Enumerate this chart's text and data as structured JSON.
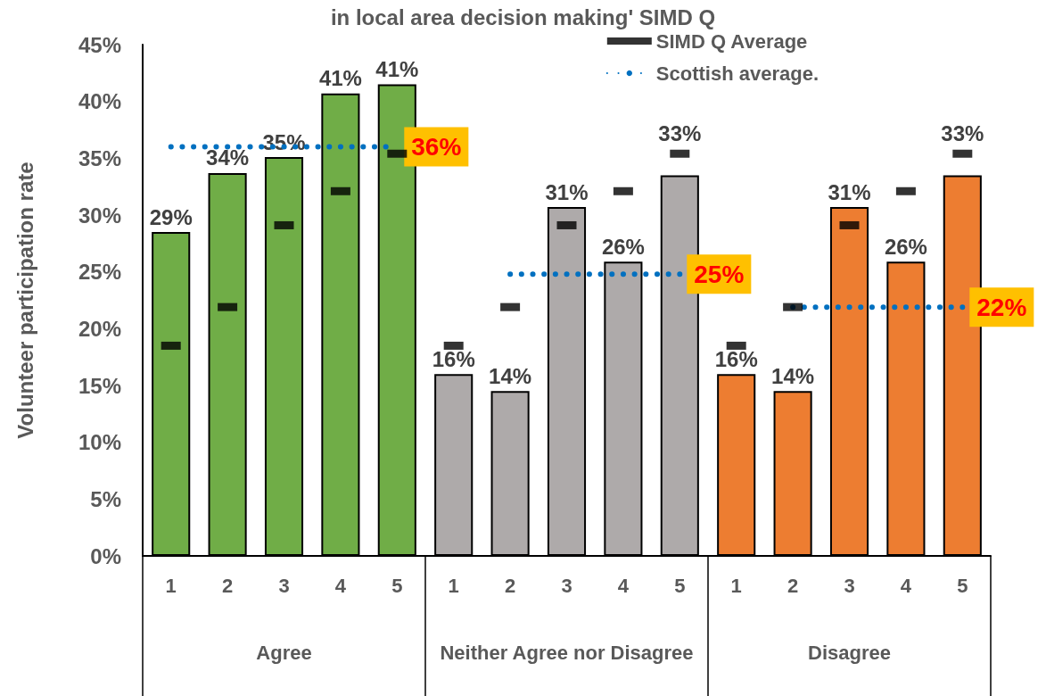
{
  "chart_data": {
    "type": "bar",
    "title": "in local area decision making' SIMD Q",
    "ylabel": "Volunteer participation rate",
    "categories": [
      "1",
      "2",
      "3",
      "4",
      "5",
      "1",
      "2",
      "3",
      "4",
      "5",
      "1",
      "2",
      "3",
      "4",
      "5"
    ],
    "annotations": [
      "Agree",
      "Neither Agree nor Disagree",
      "Disagree"
    ],
    "series": [
      {
        "colors": [
          "#70ad47",
          "#70ad47",
          "#70ad47",
          "#70ad47",
          "#70ad47",
          "#aeaaaa",
          "#aeaaaa",
          "#aeaaaa",
          "#aeaaaa",
          "#aeaaaa",
          "#ed7d31",
          "#ed7d31",
          "#ed7d31",
          "#ed7d31",
          "#ed7d31"
        ],
        "values": [
          28.5,
          33.7,
          35.1,
          40.7,
          41.5,
          16.0,
          14.5,
          30.7,
          25.9,
          33.5,
          16.0,
          14.5,
          30.7,
          25.9,
          33.5
        ],
        "value_labels": [
          "29%",
          "34%",
          "35%",
          "41%",
          "41%",
          "16%",
          "14%",
          "31%",
          "26%",
          "33%",
          "16%",
          "14%",
          "31%",
          "26%",
          "33%"
        ]
      },
      {
        "type": "scatter",
        "name": "SIMD Q Average",
        "color": "#000000",
        "marker": "square",
        "values": [
          18.5,
          21.9,
          29.1,
          32.1,
          35.4,
          18.5,
          21.9,
          29.1,
          32.1,
          35.4,
          18.5,
          21.9,
          29.1,
          32.1,
          35.4
        ]
      },
      {
        "type": "line",
        "name": "Scottish average.",
        "color": "#0070c0",
        "line_style": "dotted",
        "marker": "none",
        "values": [
          36,
          36,
          36,
          36,
          36,
          null,
          24.8,
          24.8,
          24.8,
          24.8,
          null,
          21.9,
          21.9,
          21.9,
          21.9
        ],
        "value_labels": [
          null,
          null,
          null,
          null,
          "36%",
          null,
          null,
          null,
          null,
          "25%",
          null,
          null,
          null,
          null,
          "22%"
        ]
      }
    ],
    "ylim": [
      0,
      45
    ],
    "yticks": [
      {
        "value": 0,
        "label": "0%"
      },
      {
        "value": 5,
        "label": "5%"
      },
      {
        "value": 10,
        "label": "10%"
      },
      {
        "value": 15,
        "label": "15%"
      },
      {
        "value": 20,
        "label": "20%"
      },
      {
        "value": 25,
        "label": "25%"
      },
      {
        "value": 30,
        "label": "30%"
      },
      {
        "value": 35,
        "label": "35%"
      },
      {
        "value": 40,
        "label": "40%"
      },
      {
        "value": 45,
        "label": "45%"
      }
    ],
    "grid": false,
    "legend": "top right"
  }
}
